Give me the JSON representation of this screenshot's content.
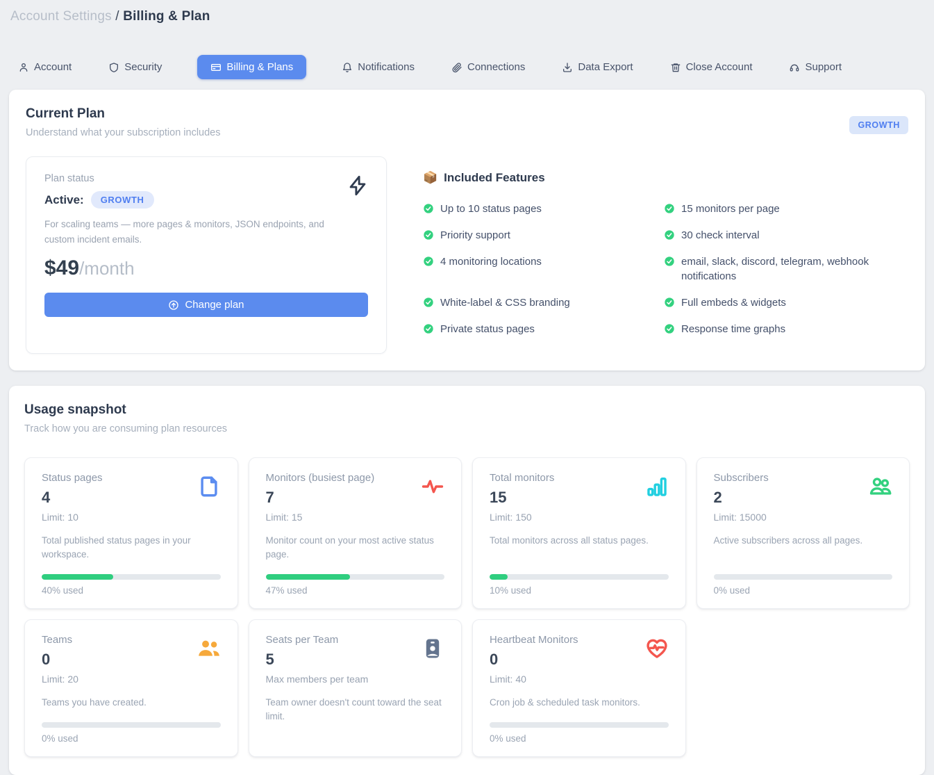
{
  "breadcrumb": {
    "section": "Account Settings",
    "separator": "/",
    "page": "Billing & Plan"
  },
  "tabs": [
    {
      "label": "Account",
      "icon": "person-icon",
      "active": false
    },
    {
      "label": "Security",
      "icon": "shield-icon",
      "active": false
    },
    {
      "label": "Billing & Plans",
      "icon": "credit-card-icon",
      "active": true
    },
    {
      "label": "Notifications",
      "icon": "bell-icon",
      "active": false
    },
    {
      "label": "Connections",
      "icon": "paperclip-icon",
      "active": false
    },
    {
      "label": "Data Export",
      "icon": "download-icon",
      "active": false
    },
    {
      "label": "Close Account",
      "icon": "trash-icon",
      "active": false
    },
    {
      "label": "Support",
      "icon": "headset-icon",
      "active": false
    }
  ],
  "current_plan": {
    "title": "Current Plan",
    "subtitle": "Understand what your subscription includes",
    "plan_badge": "GROWTH",
    "status_label": "Plan status",
    "status_value": "Active:",
    "status_badge": "GROWTH",
    "description": "For scaling teams — more pages & monitors, JSON endpoints, and custom incident emails.",
    "price_amount": "$49",
    "price_period": "/month",
    "change_plan_label": "Change plan",
    "features_title": "Included Features",
    "features_emoji": "📦",
    "features": [
      "Up to 10 status pages",
      "15 monitors per page",
      "Priority support",
      "30 check interval",
      "4 monitoring locations",
      "email, slack, discord, telegram, webhook notifications",
      "White-label & CSS branding",
      "Full embeds & widgets",
      "Private status pages",
      "Response time graphs"
    ]
  },
  "usage": {
    "title": "Usage snapshot",
    "subtitle": "Track how you are consuming plan resources",
    "cards": [
      {
        "label": "Status pages",
        "value": "4",
        "limit": "Limit: 10",
        "icon": "file-icon",
        "description": "Total published status pages in your workspace.",
        "percent": 40,
        "percent_label": "40% used"
      },
      {
        "label": "Monitors (busiest page)",
        "value": "7",
        "limit": "Limit: 15",
        "icon": "activity-icon",
        "description": "Monitor count on your most active status page.",
        "percent": 47,
        "percent_label": "47% used"
      },
      {
        "label": "Total monitors",
        "value": "15",
        "limit": "Limit: 150",
        "icon": "bar-chart-icon",
        "description": "Total monitors across all status pages.",
        "percent": 10,
        "percent_label": "10% used"
      },
      {
        "label": "Subscribers",
        "value": "2",
        "limit": "Limit: 15000",
        "icon": "users-icon",
        "description": "Active subscribers across all pages.",
        "percent": 0,
        "percent_label": "0% used"
      },
      {
        "label": "Teams",
        "value": "0",
        "limit": "Limit: 20",
        "icon": "users-filled-icon",
        "description": "Teams you have created.",
        "percent": 0,
        "percent_label": "0% used"
      },
      {
        "label": "Seats per Team",
        "value": "5",
        "limit": "Max members per team",
        "icon": "id-badge-icon",
        "description": "Team owner doesn't count toward the seat limit.",
        "percent": null,
        "percent_label": ""
      },
      {
        "label": "Heartbeat Monitors",
        "value": "0",
        "limit": "Limit: 40",
        "icon": "heart-pulse-icon",
        "description": "Cron job & scheduled task monitors.",
        "percent": 0,
        "percent_label": "0% used"
      }
    ]
  },
  "colors": {
    "accent_blue": "#5b8bee",
    "badge_bg": "#dbe6fa",
    "badge_text": "#4f7ef0",
    "progress_green": "#2fce7f",
    "check_green": "#33d17f",
    "icon_blue": "#5b8cf0",
    "icon_red": "#f4564e",
    "icon_cyan": "#21cfe0",
    "icon_green": "#33d17f",
    "icon_orange": "#f6a93b",
    "icon_slate": "#64748e",
    "page_bg": "#edeff2"
  }
}
